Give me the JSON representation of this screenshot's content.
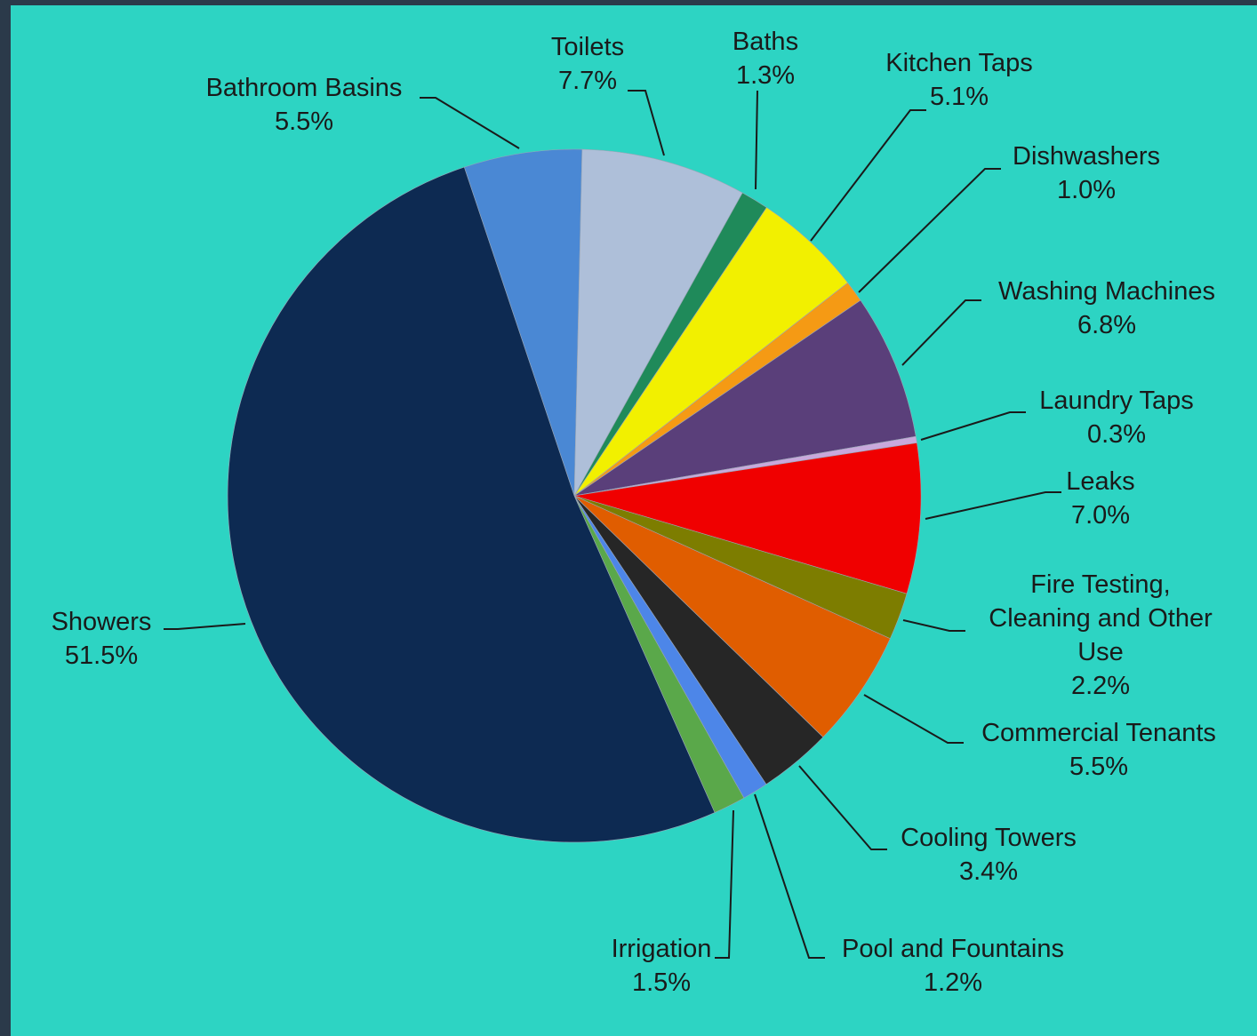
{
  "chart_data": {
    "type": "pie",
    "title": "",
    "slices": [
      {
        "label": "Bathroom Basins",
        "value": 5.5,
        "value_label": "5.5%",
        "color": "#4a88d4"
      },
      {
        "label": "Toilets",
        "value": 7.7,
        "value_label": "7.7%",
        "color": "#aebfd9"
      },
      {
        "label": "Baths",
        "value": 1.3,
        "value_label": "1.3%",
        "color": "#1f8a5a"
      },
      {
        "label": "Kitchen Taps",
        "value": 5.1,
        "value_label": "5.1%",
        "color": "#f2f000"
      },
      {
        "label": "Dishwashers",
        "value": 1.0,
        "value_label": "1.0%",
        "color": "#f59a14"
      },
      {
        "label": "Washing Machines",
        "value": 6.8,
        "value_label": "6.8%",
        "color": "#5a3f7a"
      },
      {
        "label": "Laundry Taps",
        "value": 0.3,
        "value_label": "0.3%",
        "color": "#c9a8dc"
      },
      {
        "label": "Leaks",
        "value": 7.0,
        "value_label": "7.0%",
        "color": "#f00000"
      },
      {
        "label": "Fire Testing, Cleaning and Other Use",
        "value": 2.2,
        "value_label": "2.2%",
        "color": "#7d7d00"
      },
      {
        "label": "Commercial Tenants",
        "value": 5.5,
        "value_label": "5.5%",
        "color": "#e05d00"
      },
      {
        "label": "Cooling Towers",
        "value": 3.4,
        "value_label": "3.4%",
        "color": "#262626"
      },
      {
        "label": "Pool and Fountains",
        "value": 1.2,
        "value_label": "1.2%",
        "color": "#4d86e8"
      },
      {
        "label": "Irrigation",
        "value": 1.5,
        "value_label": "1.5%",
        "color": "#5aa84a"
      },
      {
        "label": "Showers",
        "value": 51.5,
        "value_label": "51.5%",
        "color": "#0d2a52"
      }
    ]
  }
}
